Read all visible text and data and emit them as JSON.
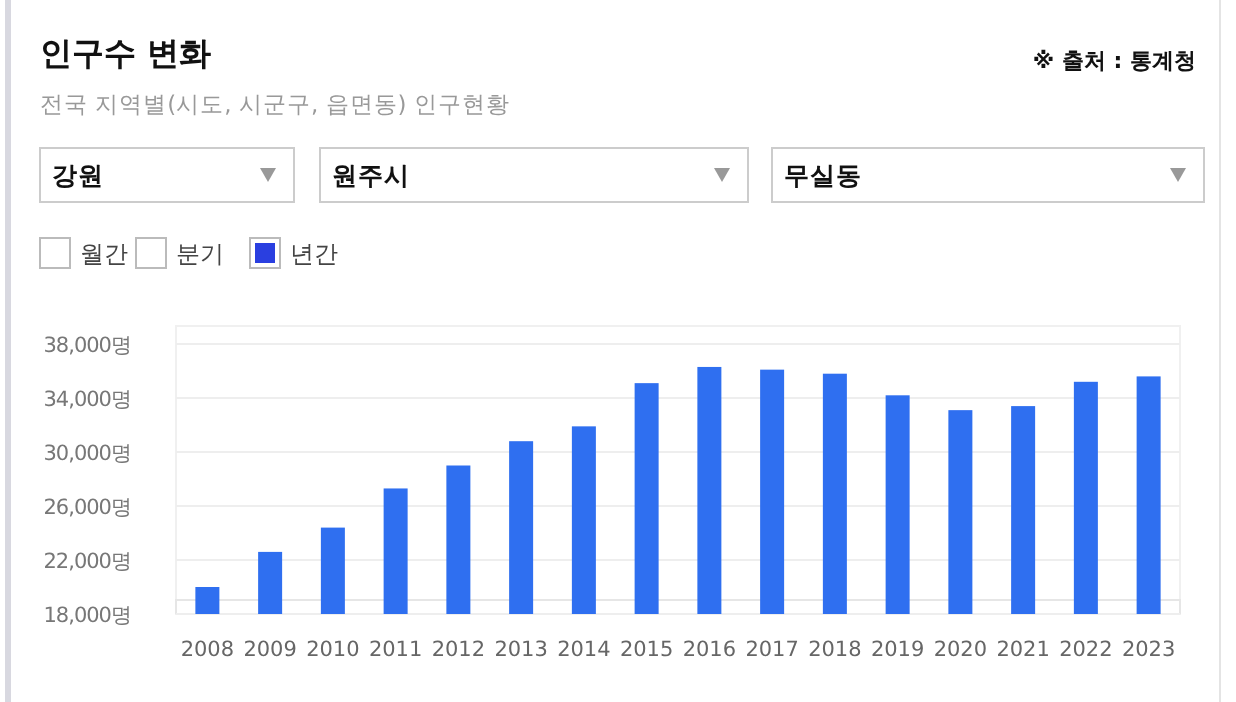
{
  "chart_data": {
    "type": "bar",
    "title": "인구수 변화",
    "subtitle": "전국 지역별(시도, 시군구, 읍면동) 인구현황",
    "annotations": [
      "※ 출처 : 통계청",
      "강원",
      "원주시",
      "무실동",
      "월간",
      "분기",
      "년간"
    ],
    "categories": [
      "2008",
      "2009",
      "2010",
      "2011",
      "2012",
      "2013",
      "2014",
      "2015",
      "2016",
      "2017",
      "2018",
      "2019",
      "2020",
      "2021",
      "2022",
      "2023"
    ],
    "values": [
      20000,
      22600,
      24400,
      27300,
      29000,
      30800,
      31900,
      35100,
      36300,
      36100,
      35800,
      34200,
      33100,
      33400,
      35200,
      35600
    ],
    "color": "#2f6ff0",
    "ylim": [
      18000,
      38000
    ],
    "yticks": [
      {
        "value": 18000,
        "label": "18,000명"
      },
      {
        "value": 22000,
        "label": "22,000명"
      },
      {
        "value": 26000,
        "label": "26,000명"
      },
      {
        "value": 30000,
        "label": "30,000명"
      },
      {
        "value": 34000,
        "label": "34,000명"
      },
      {
        "value": 38000,
        "label": "38,000명"
      }
    ],
    "grid": "y"
  }
}
